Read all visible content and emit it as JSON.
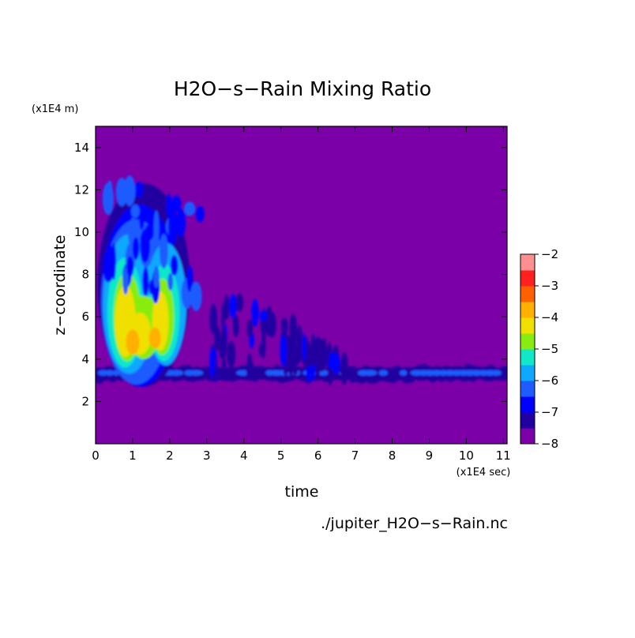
{
  "chart_data": {
    "type": "heatmap",
    "title": "H2O−s−Rain Mixing Ratio",
    "xlabel": "time",
    "ylabel": "z−coordinate",
    "x_unit": "(x1E4 sec)",
    "y_unit": "(x1E4 m)",
    "xlim": [
      0,
      11.1
    ],
    "ylim": [
      0,
      15
    ],
    "x_ticks": [
      0,
      1,
      2,
      3,
      4,
      5,
      6,
      7,
      8,
      9,
      10,
      11
    ],
    "y_ticks": [
      2,
      4,
      6,
      8,
      10,
      12,
      14
    ],
    "colorbar": {
      "levels": [
        -8,
        -7.5,
        -7,
        -6.5,
        -6,
        -5.5,
        -5,
        -4.5,
        -4,
        -3.5,
        -3,
        -2.5,
        -2
      ],
      "tick_labels": [
        "-8",
        "-7",
        "-6",
        "-5",
        "-4",
        "-3",
        "-2"
      ],
      "colors": [
        "#7b00a8",
        "#2000a0",
        "#0000ff",
        "#1e5cff",
        "#0ea8ff",
        "#10e8c8",
        "#88ec10",
        "#f0e000",
        "#ffb000",
        "#ff6000",
        "#ff2020",
        "#ff9090",
        "#ffc0c0"
      ]
    },
    "background_level": -8,
    "features": [
      {
        "desc": "persistent rain layer",
        "x_range": [
          0.1,
          11.1
        ],
        "z_center": 3.3,
        "value": -6.3
      },
      {
        "desc": "convective core",
        "x_range": [
          0.3,
          3.0
        ],
        "z_range": [
          3,
          12.7
        ],
        "max_value": -3.5
      },
      {
        "desc": "decaying cells",
        "x_range": [
          3.0,
          6.8
        ],
        "z_range": [
          3,
          8
        ],
        "value": -7
      }
    ]
  },
  "footer": {
    "filename": "./jupiter_H2O−s−Rain.nc"
  }
}
